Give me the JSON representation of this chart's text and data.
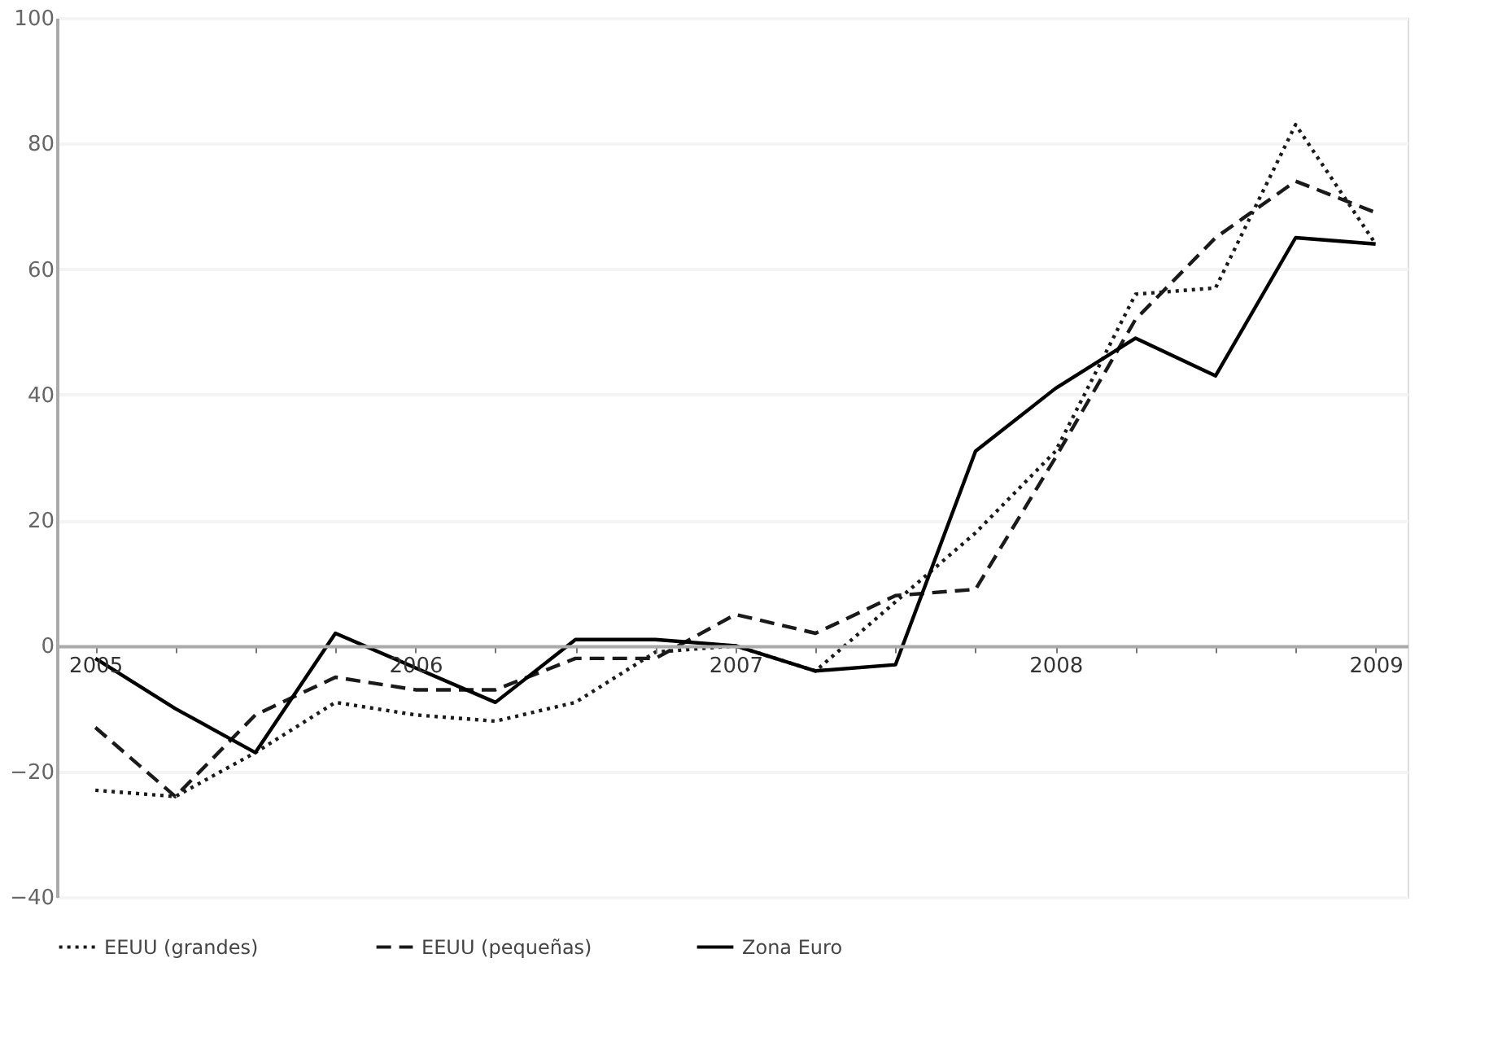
{
  "chart_data": {
    "type": "line",
    "x": [
      2005,
      2005.25,
      2005.5,
      2005.75,
      2006,
      2006.25,
      2006.5,
      2006.75,
      2007,
      2007.25,
      2007.5,
      2007.75,
      2008,
      2008.25,
      2008.5,
      2008.75,
      2009
    ],
    "series": [
      {
        "name": "EEUU   (grandes)",
        "color": "#1a1a1a",
        "line_style": "dotted",
        "values": [
          -23,
          -24,
          -17,
          -9,
          -11,
          -12,
          -9,
          -1,
          0,
          -4,
          7,
          18,
          31,
          56,
          57,
          83,
          64
        ]
      },
      {
        "name": "EEUU (pequeñas)",
        "color": "#1a1a1a",
        "line_style": "dashed",
        "values": [
          -13,
          -24,
          -11,
          -5,
          -7,
          -7,
          -2,
          -2,
          5,
          2,
          8,
          9,
          30,
          52,
          65,
          74,
          69
        ]
      },
      {
        "name": "Zona Euro",
        "color": "#000000",
        "line_style": "solid",
        "values": [
          -2,
          -10,
          -17,
          2,
          -3.5,
          -9,
          1,
          1,
          0,
          -4,
          -3,
          31,
          41,
          49,
          43,
          65,
          64
        ]
      }
    ],
    "xlim": [
      2004.88,
      2009.1
    ],
    "xticks": [
      2005,
      {
        "value": 2005.25,
        "label": null
      },
      {
        "value": 2005.5,
        "label": null
      },
      {
        "value": 2005.75,
        "label": null
      },
      2006,
      {
        "value": 2006.25,
        "label": null
      },
      {
        "value": 2006.5,
        "label": null
      },
      {
        "value": 2006.75,
        "label": null
      },
      2007,
      {
        "value": 2007.25,
        "label": null
      },
      {
        "value": 2007.5,
        "label": null
      },
      {
        "value": 2007.75,
        "label": null
      },
      2008,
      {
        "value": 2008.25,
        "label": null
      },
      {
        "value": 2008.5,
        "label": null
      },
      {
        "value": 2008.75,
        "label": null
      },
      2009
    ],
    "ylim": [
      -40,
      100
    ],
    "yticks": [
      -40,
      -20,
      0,
      20,
      40,
      60,
      80,
      100
    ],
    "grid": "y",
    "legend": "bottom",
    "marker": "none"
  }
}
